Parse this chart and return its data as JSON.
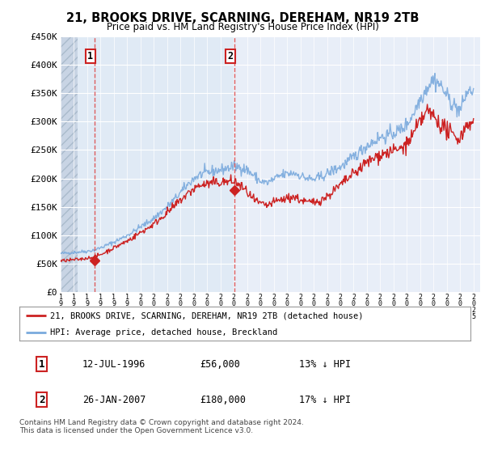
{
  "title": "21, BROOKS DRIVE, SCARNING, DEREHAM, NR19 2TB",
  "subtitle": "Price paid vs. HM Land Registry's House Price Index (HPI)",
  "ylim": [
    0,
    450000
  ],
  "yticks": [
    0,
    50000,
    100000,
    150000,
    200000,
    250000,
    300000,
    350000,
    400000,
    450000
  ],
  "ytick_labels": [
    "£0",
    "£50K",
    "£100K",
    "£150K",
    "£200K",
    "£250K",
    "£300K",
    "£350K",
    "£400K",
    "£450K"
  ],
  "hpi_color": "#7aaadd",
  "price_color": "#cc2222",
  "sale1_x": 1996.54,
  "sale1_y": 56000,
  "sale2_x": 2007.07,
  "sale2_y": 180000,
  "legend_line1": "21, BROOKS DRIVE, SCARNING, DEREHAM, NR19 2TB (detached house)",
  "legend_line2": "HPI: Average price, detached house, Breckland",
  "table_row1": [
    "1",
    "12-JUL-1996",
    "£56,000",
    "13% ↓ HPI"
  ],
  "table_row2": [
    "2",
    "26-JAN-2007",
    "£180,000",
    "17% ↓ HPI"
  ],
  "footnote": "Contains HM Land Registry data © Crown copyright and database right 2024.\nThis data is licensed under the Open Government Licence v3.0.",
  "bg_color": "#ffffff",
  "plot_bg": "#e8eef8",
  "hatch_end": 1994.8,
  "xlim_start": 1994.0,
  "xlim_end": 2025.5,
  "hpi_years": [
    1994,
    1994.5,
    1995,
    1995.5,
    1996,
    1996.5,
    1997,
    1997.5,
    1998,
    1998.5,
    1999,
    1999.5,
    2000,
    2000.5,
    2001,
    2001.5,
    2002,
    2002.5,
    2003,
    2003.5,
    2004,
    2004.5,
    2005,
    2005.5,
    2006,
    2006.5,
    2007,
    2007.5,
    2008,
    2008.5,
    2009,
    2009.5,
    2010,
    2010.5,
    2011,
    2011.5,
    2012,
    2012.5,
    2013,
    2013.5,
    2014,
    2014.5,
    2015,
    2015.5,
    2016,
    2016.5,
    2017,
    2017.5,
    2018,
    2018.5,
    2019,
    2019.5,
    2020,
    2020.5,
    2021,
    2021.5,
    2022,
    2022.5,
    2023,
    2023.5,
    2024,
    2024.5,
    2025
  ],
  "hpi_vals": [
    68000,
    69000,
    70000,
    71000,
    72000,
    74000,
    78000,
    83000,
    88000,
    94000,
    100000,
    107000,
    115000,
    122000,
    130000,
    140000,
    150000,
    162000,
    175000,
    188000,
    200000,
    207000,
    210000,
    213000,
    215000,
    218000,
    221000,
    220000,
    215000,
    205000,
    195000,
    192000,
    198000,
    205000,
    208000,
    210000,
    205000,
    200000,
    198000,
    202000,
    208000,
    215000,
    220000,
    228000,
    238000,
    248000,
    258000,
    265000,
    272000,
    275000,
    280000,
    285000,
    295000,
    315000,
    340000,
    360000,
    375000,
    365000,
    345000,
    330000,
    318000,
    352000,
    355000
  ],
  "price_years": [
    1994,
    1994.5,
    1995,
    1995.5,
    1996,
    1996.5,
    1997,
    1997.5,
    1998,
    1998.5,
    1999,
    1999.5,
    2000,
    2000.5,
    2001,
    2001.5,
    2002,
    2002.5,
    2003,
    2003.5,
    2004,
    2004.5,
    2005,
    2005.5,
    2006,
    2006.5,
    2007,
    2007.5,
    2008,
    2008.5,
    2009,
    2009.5,
    2010,
    2010.5,
    2011,
    2011.5,
    2012,
    2012.5,
    2013,
    2013.5,
    2014,
    2014.5,
    2015,
    2015.5,
    2016,
    2016.5,
    2017,
    2017.5,
    2018,
    2018.5,
    2019,
    2019.5,
    2020,
    2020.5,
    2021,
    2021.5,
    2022,
    2022.5,
    2023,
    2023.5,
    2024,
    2024.5,
    2025
  ],
  "price_vals": [
    55000,
    56000,
    57000,
    58000,
    60000,
    62000,
    66000,
    72000,
    78000,
    84000,
    90000,
    97000,
    105000,
    112000,
    120000,
    130000,
    140000,
    150000,
    162000,
    172000,
    182000,
    188000,
    190000,
    192000,
    193000,
    194000,
    195000,
    187000,
    176000,
    162000,
    155000,
    152000,
    158000,
    162000,
    165000,
    168000,
    162000,
    158000,
    158000,
    162000,
    168000,
    178000,
    188000,
    198000,
    208000,
    218000,
    228000,
    235000,
    242000,
    245000,
    248000,
    252000,
    260000,
    278000,
    300000,
    318000,
    310000,
    295000,
    285000,
    275000,
    270000,
    298000,
    295000
  ]
}
